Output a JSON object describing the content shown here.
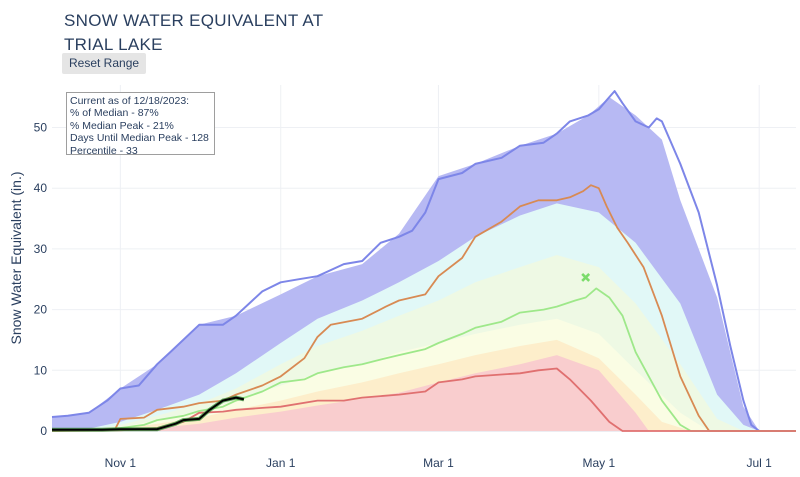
{
  "title_lines": [
    "SNOW WATER EQUIVALENT AT",
    "TRIAL LAKE"
  ],
  "reset_button_label": "Reset Range",
  "info_box": {
    "lines": [
      "Current as of 12/18/2023:",
      "% of Median - 87%",
      "% Median Peak - 21%",
      "Days Until Median Peak - 128",
      "Percentile - 33"
    ]
  },
  "colors": {
    "max_band": "#b7b9f3",
    "max_line": "#7d86e8",
    "p90_band": "#e1f8f7",
    "p70_band": "#eef9e4",
    "p50_band": "#fafde4",
    "p30_band": "#fdeecb",
    "p10_band": "#f9cdce",
    "median_line": "#9ee88a",
    "orange_line": "#d88a53",
    "red_line": "#e07070",
    "current_line": "#000000",
    "current_halo": "#3a8a3a",
    "marker": "#7bdc6b"
  },
  "chart_data": {
    "type": "area",
    "title": "SNOW WATER EQUIVALENT AT TRIAL LAKE",
    "xlabel": "",
    "ylabel": "Snow Water Equivalent (in.)",
    "x_unit": "date",
    "xlim": [
      "2023-10-06",
      "2024-07-15"
    ],
    "ylim": [
      0,
      57
    ],
    "x_ticks": [
      {
        "date": "2023-11-01",
        "label": "Nov 1"
      },
      {
        "date": "2024-01-01",
        "label": "Jan 1"
      },
      {
        "date": "2024-03-01",
        "label": "Mar 1"
      },
      {
        "date": "2024-05-01",
        "label": "May 1"
      },
      {
        "date": "2024-07-01",
        "label": "Jul 1"
      }
    ],
    "y_ticks": [
      0,
      10,
      20,
      30,
      40,
      50
    ],
    "grid": true,
    "legend": "none",
    "bands": [
      {
        "key": "max",
        "x": [
          "2023-10-06",
          "2023-10-20",
          "2023-11-01",
          "2023-11-15",
          "2023-12-01",
          "2023-12-15",
          "2024-01-01",
          "2024-01-15",
          "2024-02-01",
          "2024-02-15",
          "2024-03-01",
          "2024-03-15",
          "2024-04-01",
          "2024-04-15",
          "2024-04-27",
          "2024-05-05",
          "2024-05-15",
          "2024-05-25",
          "2024-06-01",
          "2024-06-15",
          "2024-06-25",
          "2024-07-01",
          "2024-07-15"
        ],
        "values": [
          2.3,
          3.0,
          7.0,
          11.0,
          17.5,
          19.0,
          22.5,
          25.5,
          27.5,
          32.5,
          42.0,
          44.0,
          47.0,
          49.0,
          52.0,
          55.0,
          52.0,
          48.0,
          38.0,
          22.0,
          4.0,
          0.0,
          0.0
        ]
      },
      {
        "key": "p90",
        "x": [
          "2023-10-06",
          "2023-10-20",
          "2023-11-01",
          "2023-11-15",
          "2023-12-01",
          "2023-12-15",
          "2024-01-01",
          "2024-01-15",
          "2024-02-01",
          "2024-02-15",
          "2024-03-01",
          "2024-03-15",
          "2024-04-01",
          "2024-04-15",
          "2024-05-01",
          "2024-05-15",
          "2024-06-01",
          "2024-06-15",
          "2024-06-25",
          "2024-07-01",
          "2024-07-15"
        ],
        "values": [
          0.2,
          0.4,
          1.5,
          3.5,
          6.0,
          9.5,
          14.5,
          18.5,
          21.5,
          24.5,
          28.0,
          32.0,
          35.5,
          37.5,
          36.0,
          31.0,
          21.0,
          6.0,
          1.0,
          0.0,
          0.0
        ]
      },
      {
        "key": "p70",
        "x": [
          "2023-10-06",
          "2023-10-20",
          "2023-11-01",
          "2023-11-15",
          "2023-12-01",
          "2023-12-15",
          "2024-01-01",
          "2024-01-15",
          "2024-02-01",
          "2024-02-15",
          "2024-03-01",
          "2024-03-15",
          "2024-04-01",
          "2024-04-15",
          "2024-05-01",
          "2024-05-15",
          "2024-06-01",
          "2024-06-15",
          "2024-06-25",
          "2024-07-15"
        ],
        "values": [
          0.1,
          0.2,
          1.0,
          2.5,
          4.5,
          7.0,
          11.0,
          14.0,
          16.5,
          19.0,
          21.5,
          24.5,
          27.0,
          29.0,
          27.0,
          21.0,
          11.0,
          2.0,
          0.0,
          0.0
        ]
      },
      {
        "key": "p50",
        "x": [
          "2023-10-06",
          "2023-10-20",
          "2023-11-01",
          "2023-11-15",
          "2023-12-01",
          "2023-12-15",
          "2024-01-01",
          "2024-01-15",
          "2024-02-01",
          "2024-02-15",
          "2024-03-01",
          "2024-03-15",
          "2024-04-01",
          "2024-04-15",
          "2024-05-01",
          "2024-05-15",
          "2024-06-01",
          "2024-06-12",
          "2024-07-15"
        ],
        "values": [
          0.0,
          0.1,
          0.6,
          1.8,
          3.3,
          5.0,
          7.5,
          9.5,
          11.0,
          13.0,
          14.5,
          16.0,
          17.5,
          18.5,
          16.0,
          10.0,
          3.0,
          0.0,
          0.0
        ]
      },
      {
        "key": "p30",
        "x": [
          "2023-10-06",
          "2023-10-20",
          "2023-11-01",
          "2023-11-15",
          "2023-12-01",
          "2023-12-15",
          "2024-01-01",
          "2024-01-15",
          "2024-02-01",
          "2024-02-15",
          "2024-03-01",
          "2024-03-15",
          "2024-04-01",
          "2024-04-15",
          "2024-05-01",
          "2024-05-15",
          "2024-05-25",
          "2024-06-05",
          "2024-07-15"
        ],
        "values": [
          0.0,
          0.0,
          0.4,
          1.2,
          2.2,
          3.5,
          5.0,
          6.5,
          8.0,
          9.5,
          11.0,
          12.5,
          14.0,
          15.0,
          12.0,
          6.0,
          1.5,
          0.0,
          0.0
        ]
      },
      {
        "key": "p10",
        "x": [
          "2023-10-06",
          "2023-11-01",
          "2023-11-15",
          "2023-12-01",
          "2023-12-15",
          "2024-01-01",
          "2024-01-15",
          "2024-02-01",
          "2024-02-15",
          "2024-03-01",
          "2024-03-15",
          "2024-04-01",
          "2024-04-15",
          "2024-05-01",
          "2024-05-15",
          "2024-05-20",
          "2024-07-15"
        ],
        "values": [
          0.0,
          0.1,
          0.5,
          1.2,
          2.2,
          3.2,
          4.2,
          5.3,
          6.3,
          8.0,
          9.5,
          11.0,
          12.5,
          10.0,
          3.0,
          0.0,
          0.0
        ]
      }
    ],
    "series": [
      {
        "key": "max_line",
        "x": [
          "2023-10-06",
          "2023-10-12",
          "2023-10-20",
          "2023-10-27",
          "2023-11-01",
          "2023-11-08",
          "2023-11-15",
          "2023-11-20",
          "2023-12-01",
          "2023-12-10",
          "2023-12-15",
          "2023-12-20",
          "2023-12-25",
          "2024-01-01",
          "2024-01-08",
          "2024-01-15",
          "2024-01-25",
          "2024-02-01",
          "2024-02-08",
          "2024-02-15",
          "2024-02-20",
          "2024-02-25",
          "2024-03-01",
          "2024-03-10",
          "2024-03-15",
          "2024-03-25",
          "2024-04-01",
          "2024-04-10",
          "2024-04-15",
          "2024-04-20",
          "2024-04-27",
          "2024-05-01",
          "2024-05-05",
          "2024-05-07",
          "2024-05-10",
          "2024-05-15",
          "2024-05-20",
          "2024-05-23",
          "2024-05-25",
          "2024-05-28",
          "2024-06-01",
          "2024-06-08",
          "2024-06-15",
          "2024-06-20",
          "2024-06-25",
          "2024-06-28",
          "2024-07-01",
          "2024-07-15"
        ],
        "values": [
          2.3,
          2.5,
          3.0,
          5.0,
          7.0,
          7.5,
          11.0,
          13.0,
          17.5,
          17.5,
          19.0,
          21.0,
          23.0,
          24.5,
          25.0,
          25.5,
          27.5,
          28.0,
          31.0,
          32.0,
          33.0,
          36.0,
          41.5,
          42.5,
          44.0,
          45.0,
          47.0,
          47.5,
          49.0,
          51.0,
          52.0,
          53.0,
          55.0,
          56.0,
          54.0,
          51.0,
          50.0,
          51.5,
          51.0,
          48.0,
          44.0,
          36.0,
          24.0,
          14.0,
          5.0,
          1.0,
          0.0,
          0.0
        ]
      },
      {
        "key": "orange_line",
        "x": [
          "2023-10-06",
          "2023-10-30",
          "2023-11-01",
          "2023-11-10",
          "2023-11-15",
          "2023-11-25",
          "2023-12-01",
          "2023-12-10",
          "2023-12-15",
          "2023-12-25",
          "2024-01-01",
          "2024-01-10",
          "2024-01-15",
          "2024-01-20",
          "2024-02-01",
          "2024-02-10",
          "2024-02-15",
          "2024-02-25",
          "2024-03-01",
          "2024-03-10",
          "2024-03-15",
          "2024-03-25",
          "2024-04-01",
          "2024-04-08",
          "2024-04-15",
          "2024-04-20",
          "2024-04-25",
          "2024-04-28",
          "2024-05-01",
          "2024-05-04",
          "2024-05-08",
          "2024-05-12",
          "2024-05-18",
          "2024-05-25",
          "2024-06-01",
          "2024-06-08",
          "2024-06-12",
          "2024-07-15"
        ],
        "values": [
          0.1,
          0.3,
          2.0,
          2.2,
          3.5,
          4.0,
          4.6,
          5.0,
          6.0,
          7.5,
          9.0,
          12.0,
          15.5,
          17.5,
          18.5,
          20.5,
          21.5,
          22.5,
          25.5,
          28.5,
          32.0,
          34.5,
          37.0,
          38.0,
          38.0,
          38.5,
          39.5,
          40.5,
          40.0,
          37.0,
          33.5,
          31.0,
          27.0,
          19.0,
          9.0,
          2.5,
          0.0,
          0.0
        ]
      },
      {
        "key": "median_line",
        "x": [
          "2023-10-06",
          "2023-10-15",
          "2023-10-25",
          "2023-11-01",
          "2023-11-10",
          "2023-11-15",
          "2023-11-25",
          "2023-12-01",
          "2023-12-10",
          "2023-12-15",
          "2023-12-25",
          "2024-01-01",
          "2024-01-10",
          "2024-01-15",
          "2024-01-25",
          "2024-02-01",
          "2024-02-10",
          "2024-02-15",
          "2024-02-25",
          "2024-03-01",
          "2024-03-10",
          "2024-03-15",
          "2024-03-25",
          "2024-04-01",
          "2024-04-10",
          "2024-04-15",
          "2024-04-22",
          "2024-04-26",
          "2024-04-30",
          "2024-05-05",
          "2024-05-10",
          "2024-05-15",
          "2024-05-20",
          "2024-05-25",
          "2024-06-01",
          "2024-06-05",
          "2024-07-15"
        ],
        "values": [
          0.0,
          0.1,
          0.2,
          0.5,
          1.0,
          1.8,
          2.5,
          3.3,
          4.0,
          5.0,
          6.5,
          8.0,
          8.5,
          9.5,
          10.5,
          11.0,
          12.0,
          12.5,
          13.5,
          14.5,
          16.0,
          17.0,
          18.0,
          19.5,
          20.0,
          20.5,
          21.5,
          22.0,
          23.5,
          22.0,
          19.0,
          13.0,
          9.0,
          5.0,
          1.0,
          0.0,
          0.0
        ]
      },
      {
        "key": "red_line",
        "x": [
          "2023-10-06",
          "2023-11-01",
          "2023-11-15",
          "2023-11-25",
          "2023-12-01",
          "2023-12-10",
          "2023-12-15",
          "2023-12-25",
          "2024-01-01",
          "2024-01-15",
          "2024-01-25",
          "2024-02-01",
          "2024-02-15",
          "2024-02-25",
          "2024-03-01",
          "2024-03-10",
          "2024-03-15",
          "2024-03-25",
          "2024-04-01",
          "2024-04-08",
          "2024-04-15",
          "2024-04-20",
          "2024-04-28",
          "2024-05-05",
          "2024-05-10",
          "2024-07-15"
        ],
        "values": [
          0.0,
          0.1,
          0.5,
          1.5,
          3.0,
          3.2,
          3.5,
          3.8,
          4.0,
          5.0,
          5.0,
          5.5,
          6.0,
          6.5,
          8.0,
          8.5,
          9.0,
          9.3,
          9.5,
          10.0,
          10.3,
          8.5,
          5.0,
          1.5,
          0.0,
          0.0
        ]
      },
      {
        "key": "current",
        "x": [
          "2023-10-06",
          "2023-10-15",
          "2023-10-25",
          "2023-11-01",
          "2023-11-10",
          "2023-11-15",
          "2023-11-22",
          "2023-11-25",
          "2023-12-01",
          "2023-12-05",
          "2023-12-10",
          "2023-12-15",
          "2023-12-18"
        ],
        "values": [
          0.2,
          0.2,
          0.2,
          0.3,
          0.3,
          0.3,
          1.2,
          1.8,
          2.0,
          3.5,
          5.0,
          5.5,
          5.2
        ]
      }
    ],
    "markers": [
      {
        "key": "marker",
        "x": "2024-04-26",
        "y": 25.3,
        "symbol": "x"
      }
    ]
  }
}
